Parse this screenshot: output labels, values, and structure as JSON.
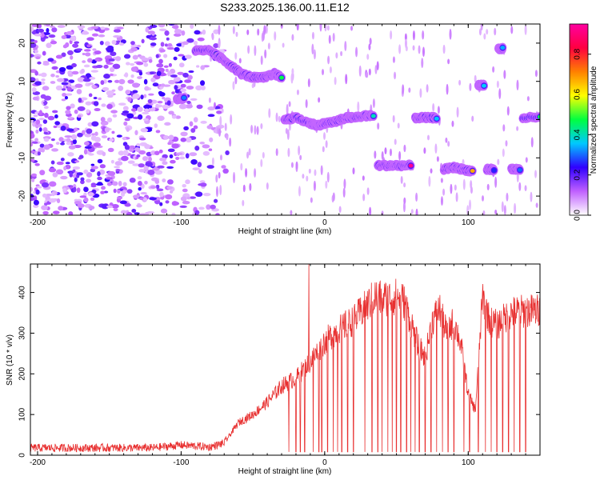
{
  "figure": {
    "title": "S233.2025.136.00.11.E12"
  },
  "chart_data": [
    {
      "type": "heatmap",
      "xlabel": "Height of straight line (km)",
      "ylabel": "Frequency (Hz)",
      "xlim": [
        -205,
        150
      ],
      "ylim": [
        -25,
        25
      ],
      "xticks": [
        -200,
        -100,
        0,
        100
      ],
      "yticks": [
        -20,
        -10,
        0,
        10,
        20
      ],
      "colorbar": {
        "label": "Normalized spectral amplitude",
        "range": [
          0.0,
          0.95
        ],
        "ticks": [
          0.0,
          0.2,
          0.4,
          0.6,
          0.8
        ],
        "colors": [
          "#ffffff",
          "#c060ff",
          "#3000ff",
          "#00c8ff",
          "#00ff40",
          "#ffff00",
          "#ff8000",
          "#ff0040",
          "#ff00a0"
        ]
      },
      "features": [
        {
          "x": [
            -103,
            -98
          ],
          "y": [
            5.5,
            5.5
          ],
          "amplitude": 0.3
        },
        {
          "x": [
            -90,
            -80,
            -72,
            -65,
            -58,
            -50,
            -42,
            -35,
            -30
          ],
          "y": [
            18,
            18,
            16,
            14,
            12,
            11,
            11,
            12,
            11
          ],
          "amplitude": 0.55
        },
        {
          "x": [
            -28,
            -20,
            -10,
            -5,
            0,
            8,
            15,
            20,
            28,
            34
          ],
          "y": [
            0,
            0.5,
            -1,
            -1.5,
            -1,
            -0.5,
            0.5,
            0.5,
            1,
            1
          ],
          "amplitude": 0.5
        },
        {
          "x": [
            37,
            45,
            52,
            60
          ],
          "y": [
            -12,
            -12,
            -12,
            -12
          ],
          "amplitude": 0.9
        },
        {
          "x": [
            63,
            70,
            78
          ],
          "y": [
            0.5,
            0.5,
            0.5
          ],
          "amplitude": 0.35
        },
        {
          "x": [
            83,
            90,
            96,
            103
          ],
          "y": [
            -13,
            -12.5,
            -13,
            -13.5
          ],
          "amplitude": 0.7
        },
        {
          "x": [
            107,
            111
          ],
          "y": [
            9,
            9
          ],
          "amplitude": 0.35
        },
        {
          "x": [
            121,
            124
          ],
          "y": [
            18.5,
            18.5
          ],
          "amplitude": 0.4
        },
        {
          "x": [
            113,
            118
          ],
          "y": [
            -13,
            -13
          ],
          "amplitude": 0.3
        },
        {
          "x": [
            130,
            136
          ],
          "y": [
            -13,
            -13
          ],
          "amplitude": 0.3
        },
        {
          "x": [
            138,
            150
          ],
          "y": [
            0.5,
            0.5
          ],
          "amplitude": 0.45
        }
      ],
      "noise_region_x": [
        -205,
        -75
      ]
    },
    {
      "type": "line",
      "xlabel": "Height of straight line (km)",
      "ylabel": "SNR (10 * v/v)",
      "xlim": [
        -205,
        150
      ],
      "ylim": [
        0,
        470
      ],
      "xticks": [
        -200,
        -100,
        0,
        100
      ],
      "yticks": [
        0,
        100,
        200,
        300,
        400
      ],
      "color": "#e83030",
      "envelope": {
        "x": [
          -205,
          -120,
          -100,
          -80,
          -70,
          -60,
          -50,
          -40,
          -30,
          -20,
          -10,
          0,
          10,
          20,
          30,
          35,
          40,
          50,
          55,
          60,
          65,
          70,
          75,
          80,
          85,
          90,
          95,
          100,
          105,
          110,
          115,
          120,
          130,
          140,
          150
        ],
        "y": [
          18,
          18,
          25,
          20,
          30,
          80,
          100,
          130,
          170,
          190,
          230,
          280,
          310,
          330,
          370,
          390,
          385,
          390,
          380,
          330,
          270,
          240,
          330,
          360,
          300,
          330,
          270,
          150,
          110,
          390,
          330,
          320,
          350,
          355,
          355
        ]
      },
      "spike_peak": {
        "x": -11,
        "y": 470
      },
      "dropouts_x": [
        -25,
        -20,
        -17,
        -14,
        -8,
        -4,
        -2,
        2,
        6,
        9,
        12,
        16,
        20,
        28,
        33,
        37,
        40,
        44,
        47,
        50,
        53,
        57,
        60,
        63,
        66,
        70,
        74,
        78,
        82,
        86,
        90,
        97,
        101,
        107,
        112,
        116,
        120,
        124,
        128,
        132,
        136,
        140
      ]
    }
  ]
}
